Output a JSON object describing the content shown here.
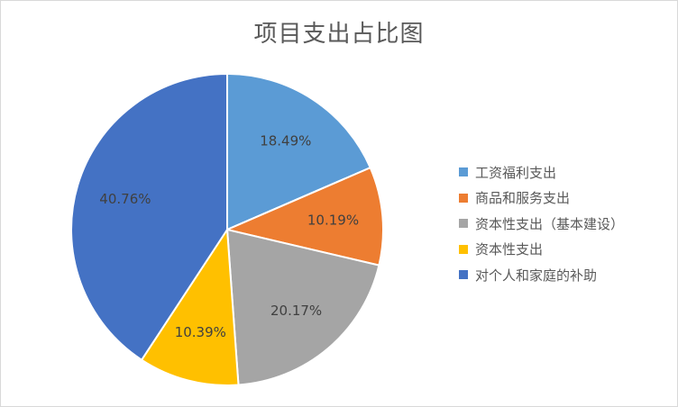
{
  "chart_data": {
    "type": "pie",
    "title": "项目支出占比图",
    "categories": [
      "工资福利支出",
      "商品和服务支出",
      "资本性支出（基本建设）",
      "资本性支出",
      "对个人和家庭的补助"
    ],
    "values": [
      18.49,
      10.19,
      20.17,
      10.39,
      40.76
    ],
    "data_labels": [
      "18.49%",
      "10.19%",
      "20.17%",
      "10.39%",
      "40.76%"
    ],
    "colors": [
      "#5b9bd5",
      "#ed7d31",
      "#a5a5a5",
      "#ffc000",
      "#4472c4"
    ],
    "start_angle": "12 o'clock",
    "direction": "clockwise",
    "legend_position": "right"
  }
}
